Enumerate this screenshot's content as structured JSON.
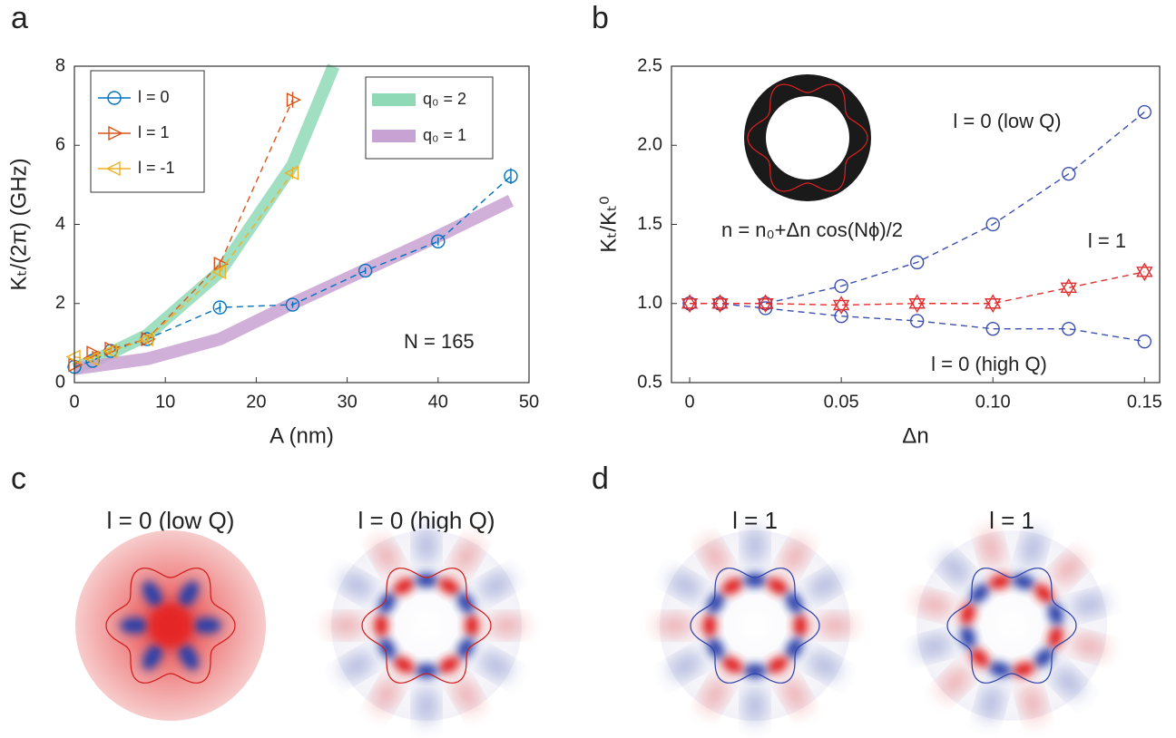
{
  "panel_labels": [
    "a",
    "b",
    "c",
    "d"
  ],
  "chart_data": [
    {
      "type": "line",
      "xlabel": "A (nm)",
      "ylabel": "Kₜ/(2π) (GHz)",
      "xlim": [
        0,
        50
      ],
      "xticks": [
        0,
        10,
        20,
        30,
        40,
        50
      ],
      "ylim": [
        0,
        8
      ],
      "yticks": [
        0,
        2,
        4,
        6,
        8
      ],
      "legend": "upper left",
      "series": [
        {
          "name": "l = 0",
          "color": "#0072bd",
          "marker": "circle",
          "style": "points",
          "x": [
            0,
            2,
            4,
            8,
            16,
            24,
            32,
            40,
            48
          ],
          "values": [
            0.4,
            0.55,
            0.8,
            1.1,
            1.9,
            1.97,
            2.83,
            3.57,
            5.22
          ],
          "errors": [
            0.05,
            0.05,
            0.05,
            0.05,
            0.12,
            0.08,
            0.08,
            0.1,
            0.2
          ]
        },
        {
          "name": "l = 1",
          "color": "#d95319",
          "marker": "tri-right",
          "style": "points",
          "x": [
            0,
            2,
            4,
            8,
            16,
            24
          ],
          "values": [
            0.45,
            0.75,
            0.85,
            1.1,
            3.0,
            7.15
          ],
          "errors": [
            0.05,
            0.05,
            0.05,
            0.05,
            0.1,
            0.2
          ]
        },
        {
          "name": "l = -1",
          "color": "#edb120",
          "marker": "tri-left",
          "style": "points",
          "x": [
            0,
            2,
            4,
            8,
            16,
            24
          ],
          "values": [
            0.65,
            0.6,
            0.8,
            1.1,
            2.8,
            5.3
          ],
          "errors": [
            0.05,
            0.05,
            0.05,
            0.05,
            0.1,
            0.15
          ]
        },
        {
          "name": "q₀ = 2",
          "color": "#8fd9b6",
          "style": "band",
          "x": [
            0,
            4,
            8,
            16,
            24,
            28.5
          ],
          "values": [
            0.35,
            0.75,
            1.2,
            2.8,
            5.5,
            8
          ]
        },
        {
          "name": "q₀ = 1",
          "color": "#c8a2d2",
          "style": "band",
          "x": [
            0,
            8,
            16,
            24,
            32,
            40,
            48
          ],
          "values": [
            0.35,
            0.6,
            1.1,
            2.0,
            2.85,
            3.7,
            4.6
          ]
        }
      ],
      "annotations": [
        "N = 165"
      ]
    },
    {
      "type": "line",
      "xlabel": "Δn",
      "ylabel": "Kₜ/Kₜ⁰",
      "xlim": [
        -0.006,
        0.155
      ],
      "xticks": [
        0,
        0.05,
        {
          "value": 0.1,
          "label": "0.10"
        },
        0.15
      ],
      "ylim": [
        0.5,
        2.5
      ],
      "yticks": [
        0.5,
        {
          "value": 1,
          "label": "1.0"
        },
        1.5,
        {
          "value": 2,
          "label": "2.0"
        },
        2.5
      ],
      "series": [
        {
          "color": "#3b4fb0",
          "marker": "circle",
          "style": "points",
          "x": [
            0,
            0.01,
            0.025,
            0.05,
            0.075,
            0.1,
            0.125,
            0.15
          ],
          "values": [
            1,
            1,
            1,
            1.11,
            1.26,
            1.5,
            1.82,
            2.21
          ]
        },
        {
          "color": "#3b4fb0",
          "marker": "circle",
          "style": "points",
          "x": [
            0,
            0.01,
            0.025,
            0.05,
            0.075,
            0.1,
            0.125,
            0.15
          ],
          "values": [
            1,
            1,
            0.97,
            0.92,
            0.89,
            0.84,
            0.84,
            0.76
          ]
        },
        {
          "color": "#e03030",
          "marker": "hexagram",
          "style": "points",
          "x": [
            0,
            0.01,
            0.025,
            0.05,
            0.075,
            0.1,
            0.125,
            0.15
          ],
          "values": [
            1,
            1,
            1,
            0.99,
            1,
            1,
            1.1,
            1.2
          ]
        }
      ],
      "annotations": [
        "l = 0 (low Q)",
        "l = 1",
        "l = 0 (high Q)",
        "n = n₀+Δn cos(Nϕ)/2"
      ]
    }
  ],
  "images": [
    {
      "title": "l = 0 (low Q)"
    },
    {
      "title": "l = 0 (high Q)"
    },
    {
      "title": "l = 1"
    },
    {
      "title": "l = 1"
    }
  ]
}
